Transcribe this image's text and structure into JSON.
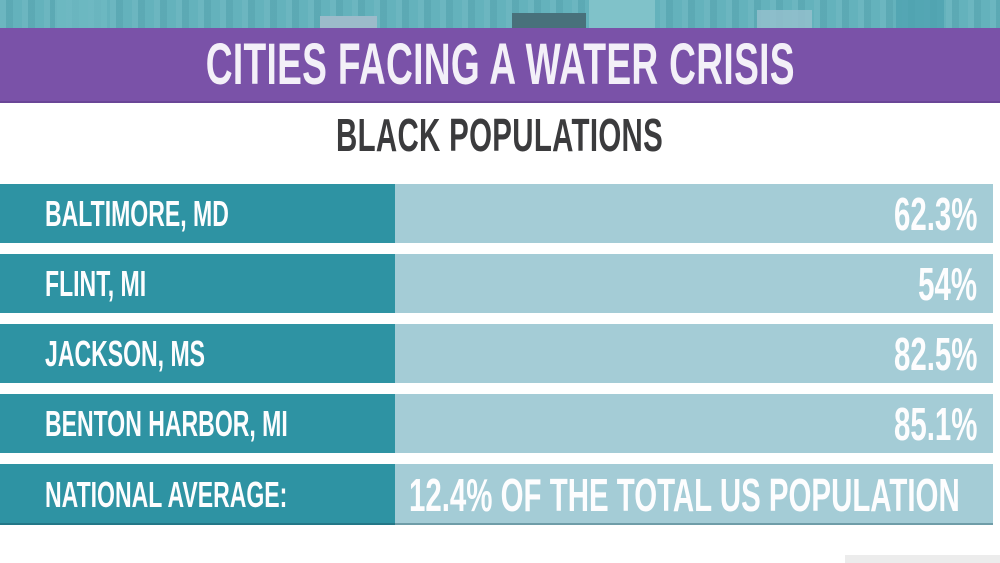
{
  "header": {
    "title": "CITIES FACING A WATER CRISIS",
    "subtitle": "BLACK POPULATIONS"
  },
  "rows": [
    {
      "label": "BALTIMORE, MD",
      "value": "62.3%"
    },
    {
      "label": "FLINT, MI",
      "value": "54%"
    },
    {
      "label": "JACKSON, MS",
      "value": "82.5%"
    },
    {
      "label": "BENTON HARBOR, MI",
      "value": "85.1%"
    }
  ],
  "footer": {
    "label": "NATIONAL AVERAGE:",
    "value": "12.4% OF THE TOTAL US POPULATION"
  },
  "colors": {
    "banner_purple": "#7a52a8",
    "banner_purple_dark": "#6a4697",
    "label_teal": "#2e93a3",
    "bar_teal": "#a4ccd6",
    "subtitle_gray": "#3b3b3d",
    "text_white": "#fdfdfe",
    "texture_base": "#61b0bb"
  },
  "chart_data": {
    "type": "table",
    "title": "CITIES FACING A WATER CRISIS",
    "subtitle": "BLACK POPULATIONS",
    "categories": [
      "BALTIMORE, MD",
      "FLINT, MI",
      "JACKSON, MS",
      "BENTON HARBOR, MI"
    ],
    "values": [
      62.3,
      54,
      82.5,
      85.1
    ],
    "value_labels": [
      "62.3%",
      "54%",
      "82.5%",
      "85.1%"
    ],
    "unit": "percent",
    "annotation": {
      "label": "NATIONAL AVERAGE:",
      "value": 12.4,
      "text": "12.4% OF THE TOTAL US POPULATION"
    },
    "layout": "horizontal full-width rows, city labels in dark teal cells on left, percentage values right-aligned in light teal bars; no proportional bar scaling; no axes or gridlines; legend none"
  }
}
